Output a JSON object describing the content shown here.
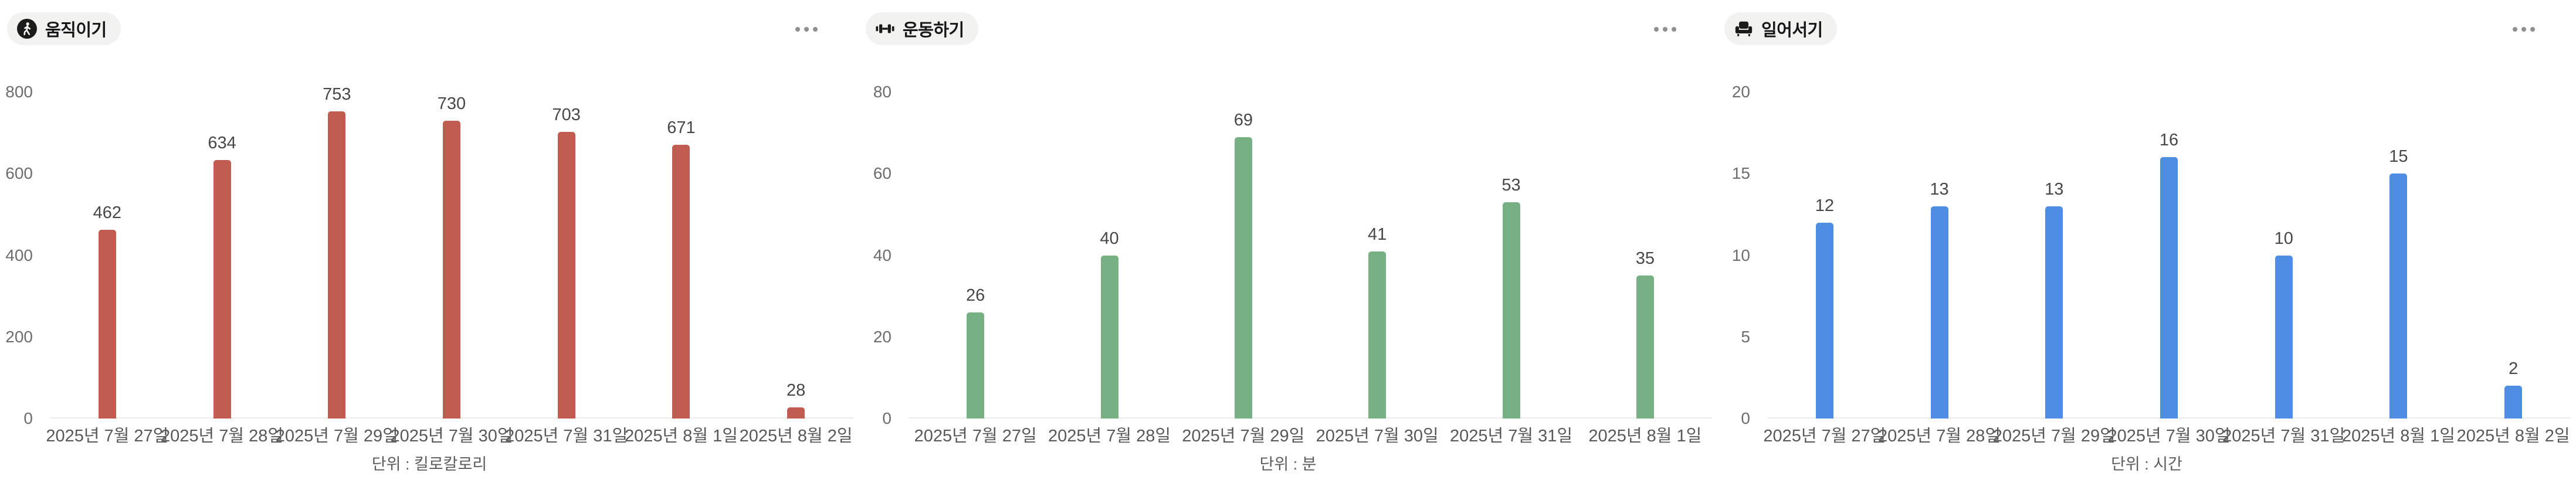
{
  "page": {
    "background_color": "#ffffff",
    "more_options_icon": "ellipsis"
  },
  "chart_data": [
    {
      "type": "bar",
      "title": "움직이기",
      "icon": "person-walking-icon",
      "categories": [
        "2025년 7월 27일",
        "2025년 7월 28일",
        "2025년 7월 29일",
        "2025년 7월 30일",
        "2025년 7월 31일",
        "2025년 8월 1일",
        "2025년 8월 2일"
      ],
      "values": [
        462,
        634,
        753,
        730,
        703,
        671,
        28
      ],
      "unit": "단위 : 킬로칼로리",
      "bar_color": "#c05c50",
      "ylim": [
        0,
        800
      ],
      "yticks": [
        0,
        200,
        400,
        600,
        800
      ],
      "grid": false,
      "value_labels": true,
      "legend": "none"
    },
    {
      "type": "bar",
      "title": "운동하기",
      "icon": "dumbbell-icon",
      "categories": [
        "2025년 7월 27일",
        "2025년 7월 28일",
        "2025년 7월 29일",
        "2025년 7월 30일",
        "2025년 7월 31일",
        "2025년 8월 1일"
      ],
      "values": [
        26,
        40,
        69,
        41,
        53,
        35
      ],
      "unit": "단위 : 분",
      "bar_color": "#77b083",
      "ylim": [
        0,
        80
      ],
      "yticks": [
        0,
        20,
        40,
        60,
        80
      ],
      "grid": false,
      "value_labels": true,
      "legend": "none"
    },
    {
      "type": "bar",
      "title": "일어서기",
      "icon": "armchair-icon",
      "categories": [
        "2025년 7월 27일",
        "2025년 7월 28일",
        "2025년 7월 29일",
        "2025년 7월 30일",
        "2025년 7월 31일",
        "2025년 8월 1일",
        "2025년 8월 2일"
      ],
      "values": [
        12,
        13,
        13,
        16,
        10,
        15,
        2
      ],
      "unit": "단위 : 시간",
      "bar_color": "#4d8de2",
      "ylim": [
        0,
        20
      ],
      "yticks": [
        0,
        5,
        10,
        15,
        20
      ],
      "grid": false,
      "value_labels": true,
      "legend": "none"
    }
  ]
}
